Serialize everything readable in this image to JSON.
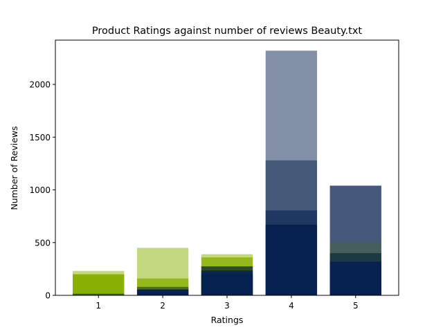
{
  "chart_data": {
    "type": "bar",
    "title": "Product Ratings against number of reviews Beauty.txt",
    "xlabel": "Ratings",
    "ylabel": "Number of Reviews",
    "categories": [
      "1",
      "2",
      "3",
      "4",
      "5"
    ],
    "ylim": [
      0,
      2420
    ],
    "yticks": [
      0,
      500,
      1000,
      1500,
      2000
    ],
    "grid": false,
    "bar_colors": [
      "#89B004",
      "#89B004",
      "#89B004",
      "#072250",
      "#072250"
    ],
    "overlay_bars": [
      {
        "category": "1",
        "value": 232,
        "color": "#89b004",
        "opacity": 0.5
      },
      {
        "category": "1",
        "value": 200,
        "color": "#89b004",
        "opacity": 1.0
      },
      {
        "category": "1",
        "value": 15,
        "color": "#3a5a1c",
        "opacity": 1.0
      },
      {
        "category": "2",
        "value": 450,
        "color": "#89b004",
        "opacity": 0.5
      },
      {
        "category": "2",
        "value": 160,
        "color": "#89b004",
        "opacity": 0.8
      },
      {
        "category": "2",
        "value": 80,
        "color": "#4a6a1e",
        "opacity": 1.0
      },
      {
        "category": "2",
        "value": 55,
        "color": "#072250",
        "opacity": 1.0
      },
      {
        "category": "3",
        "value": 390,
        "color": "#89b004",
        "opacity": 0.5
      },
      {
        "category": "3",
        "value": 360,
        "color": "#89b004",
        "opacity": 0.8
      },
      {
        "category": "3",
        "value": 275,
        "color": "#2e4a2a",
        "opacity": 1.0
      },
      {
        "category": "3",
        "value": 235,
        "color": "#0a2a48",
        "opacity": 1.0
      },
      {
        "category": "3",
        "value": 205,
        "color": "#072250",
        "opacity": 1.0
      },
      {
        "category": "4",
        "value": 2320,
        "color": "#072250",
        "opacity": 0.5
      },
      {
        "category": "4",
        "value": 1280,
        "color": "#072250",
        "opacity": 0.5
      },
      {
        "category": "4",
        "value": 805,
        "color": "#072250",
        "opacity": 0.6
      },
      {
        "category": "4",
        "value": 670,
        "color": "#072250",
        "opacity": 1.0
      },
      {
        "category": "5",
        "value": 1040,
        "color": "#072250",
        "opacity": 0.75
      },
      {
        "category": "5",
        "value": 505,
        "color": "#4a6a1e",
        "opacity": 0.35
      },
      {
        "category": "5",
        "value": 400,
        "color": "#0a2a3a",
        "opacity": 0.7
      },
      {
        "category": "5",
        "value": 320,
        "color": "#072250",
        "opacity": 1.0
      }
    ]
  }
}
